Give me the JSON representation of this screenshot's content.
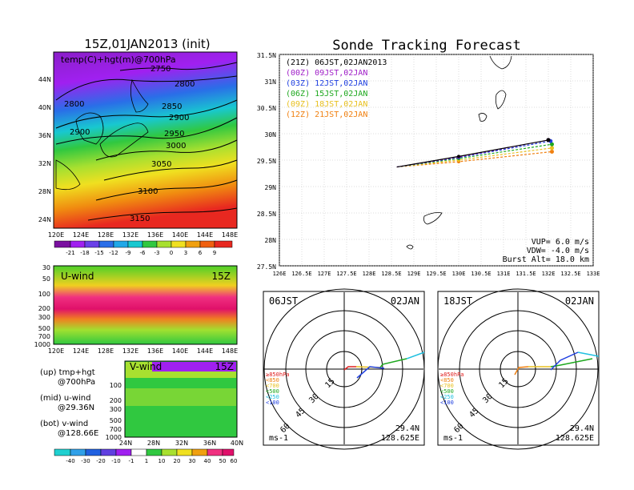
{
  "left_title": "15Z,01JAN2013 (init)",
  "main_title": "Sonde Tracking Forecast",
  "top_map": {
    "label": "temp(C)+hgt(m)@700hPa",
    "lat_ticks": [
      "44N",
      "40N",
      "36N",
      "32N",
      "28N",
      "24N"
    ],
    "lon_ticks": [
      "120E",
      "124E",
      "128E",
      "132E",
      "136E",
      "140E",
      "144E",
      "148E"
    ],
    "contours": [
      "2750",
      "2800",
      "2800",
      "2850",
      "2900",
      "2900",
      "2950",
      "3000",
      "3050",
      "3100",
      "3150"
    ],
    "colorbar_labels": [
      "-21",
      "-18",
      "-15",
      "-12",
      "-9",
      "-6",
      "-3",
      "0",
      "3",
      "6",
      "9"
    ]
  },
  "u_panel": {
    "label": "U-wind",
    "time": "15Z",
    "y_ticks": [
      "30",
      "50",
      "100",
      "200",
      "300",
      "500",
      "700",
      "1000"
    ],
    "x_ticks": [
      "120E",
      "124E",
      "128E",
      "132E",
      "136E",
      "140E",
      "144E",
      "148E"
    ]
  },
  "v_panel": {
    "label": "V-wind",
    "time": "15Z",
    "y_ticks": [
      "100",
      "200",
      "300",
      "500",
      "700",
      "1000"
    ],
    "x_ticks": [
      "24N",
      "28N",
      "32N",
      "36N",
      "40N"
    ]
  },
  "legend_notes": [
    {
      "a": "(up) tmp+hgt",
      "b": "@700hPa"
    },
    {
      "a": "(mid) u-wind",
      "b": "@29.36N"
    },
    {
      "a": "(bot) v-wind",
      "b": "@128.66E"
    }
  ],
  "wind_colorbar_labels": [
    "-40",
    "-30",
    "-20",
    "-10",
    "-1",
    "1",
    "10",
    "20",
    "30",
    "40",
    "50",
    "60"
  ],
  "chart_data": {
    "type": "line",
    "title": "Sonde Tracking Forecast",
    "xlim": [
      126,
      133
    ],
    "ylim": [
      27.5,
      31.5
    ],
    "x_ticks": [
      "126E",
      "126.5E",
      "127E",
      "127.5E",
      "128E",
      "128.5E",
      "129E",
      "129.5E",
      "130E",
      "130.5E",
      "131E",
      "131.5E",
      "132E",
      "132.5E",
      "133E"
    ],
    "y_ticks": [
      "27.5N",
      "28N",
      "28.5N",
      "29N",
      "29.5N",
      "30N",
      "30.5N",
      "31N",
      "31.5N"
    ],
    "legend_placement": "top-left",
    "series": [
      {
        "name": "(21Z)  06JST,02JAN2013",
        "color": "#000000",
        "x": [
          128.62,
          130.0,
          132.0
        ],
        "y": [
          29.37,
          29.57,
          29.88
        ]
      },
      {
        "name": "(00Z)  09JST,02JAN",
        "color": "#a01fc8",
        "x": [
          128.62,
          130.0,
          132.0
        ],
        "y": [
          29.37,
          29.56,
          29.88
        ]
      },
      {
        "name": "(03Z)  12JST,02JAN",
        "color": "#2040e0",
        "x": [
          128.62,
          130.0,
          132.05
        ],
        "y": [
          29.37,
          29.55,
          29.86
        ]
      },
      {
        "name": "(06Z)  15JST,02JAN",
        "color": "#1ea81e",
        "x": [
          128.62,
          130.0,
          132.08
        ],
        "y": [
          29.37,
          29.53,
          29.8
        ]
      },
      {
        "name": "(09Z)  18JST,02JAN",
        "color": "#e8c020",
        "x": [
          128.62,
          130.0,
          132.08
        ],
        "y": [
          29.37,
          29.5,
          29.73
        ]
      },
      {
        "name": "(12Z)  21JST,02JAN",
        "color": "#f08010",
        "x": [
          128.62,
          130.0,
          132.08
        ],
        "y": [
          29.37,
          29.47,
          29.66
        ]
      }
    ],
    "params": [
      "VUP=  6.0 m/s",
      "VDW= -4.0 m/s",
      "Burst Alt=  18.0 km"
    ]
  },
  "hodographs": [
    {
      "time": "06JST",
      "date": "02JAN",
      "lat": "29.4N",
      "lon": "128.625E",
      "unit": "ms-1"
    },
    {
      "time": "18JST",
      "date": "02JAN",
      "lat": "29.4N",
      "lon": "128.625E",
      "unit": "ms-1"
    }
  ],
  "hodo_rings": [
    "15",
    "30",
    "45",
    "60"
  ],
  "hodo_legend": [
    {
      "text": "≥850hPa",
      "color": "#e02020"
    },
    {
      "text": "<850",
      "color": "#f08010"
    },
    {
      "text": "<700",
      "color": "#e8c020"
    },
    {
      "text": "<500",
      "color": "#1ea81e"
    },
    {
      "text": "<250",
      "color": "#20c0e0"
    },
    {
      "text": "<100",
      "color": "#2040e0"
    }
  ]
}
